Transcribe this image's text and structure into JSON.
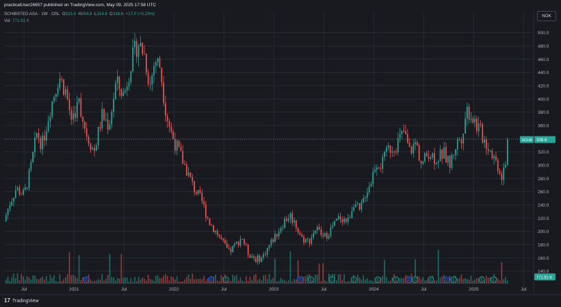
{
  "header": {
    "published_by": "practicalUser26657 published on TradingView.com, May 09, 2025 17:58 UTC"
  },
  "legend": {
    "symbol": "SCHIBSTED ASA · 1W · OSL",
    "o_label": "O",
    "o": "323.0",
    "h_label": "H",
    "h": "354.8",
    "l_label": "L",
    "l": "314.8",
    "c_label": "C",
    "c": "338.6",
    "change": "+17.0 (+5.29%)",
    "vol_label": "Vol",
    "vol": "771.91 K"
  },
  "currency": "NOK",
  "footer": {
    "logo": "17",
    "brand": "TradingView"
  },
  "colors": {
    "up": "#26a69a",
    "down": "#ef5350",
    "grid": "#262a33",
    "background": "#181a1f",
    "axis_text": "#b2b5be",
    "price_label": "#26a69a"
  },
  "chart_data": {
    "type": "candlestick",
    "interval": "1W",
    "currency": "NOK",
    "x_range": [
      "2020-04",
      "2025-07"
    ],
    "x_tick_labels": [
      "Jul",
      "2021",
      "Jul",
      "2022",
      "Jul",
      "2023",
      "Jul",
      "2024",
      "Jul",
      "2025",
      "Jul"
    ],
    "x_tick_dates": [
      2020.5,
      2021.0,
      2021.5,
      2022.0,
      2022.5,
      2023.0,
      2023.5,
      2024.0,
      2024.5,
      2025.0,
      2025.5
    ],
    "y_ticks": [
      140,
      160,
      180,
      200,
      220,
      240,
      260,
      280,
      300,
      320,
      340,
      360,
      380,
      400,
      420,
      440,
      460,
      480,
      500
    ],
    "ylim": [
      120,
      510
    ],
    "y_tick_labels": [
      "140.0",
      "160.0",
      "180.0",
      "200.0",
      "220.0",
      "240.0",
      "260.0",
      "280.0",
      "300.0",
      "320.0",
      "340.0",
      "360.0",
      "380.0",
      "400.0",
      "420.0",
      "440.0",
      "460.0",
      "480.0",
      "500.0"
    ],
    "last_price": 338.6,
    "last_price_label": "338.6",
    "last_price_tag": "SCHA",
    "last_volume_label": "771.91 K",
    "price_path": [
      {
        "t": 2020.3,
        "p": 215
      },
      {
        "t": 2020.35,
        "p": 240
      },
      {
        "t": 2020.42,
        "p": 265
      },
      {
        "t": 2020.5,
        "p": 255
      },
      {
        "t": 2020.56,
        "p": 290
      },
      {
        "t": 2020.63,
        "p": 350
      },
      {
        "t": 2020.68,
        "p": 330
      },
      {
        "t": 2020.76,
        "p": 385
      },
      {
        "t": 2020.85,
        "p": 435
      },
      {
        "t": 2020.92,
        "p": 410
      },
      {
        "t": 2020.97,
        "p": 370
      },
      {
        "t": 2021.05,
        "p": 395
      },
      {
        "t": 2021.12,
        "p": 350
      },
      {
        "t": 2021.2,
        "p": 320
      },
      {
        "t": 2021.28,
        "p": 375
      },
      {
        "t": 2021.35,
        "p": 360
      },
      {
        "t": 2021.42,
        "p": 425
      },
      {
        "t": 2021.5,
        "p": 405
      },
      {
        "t": 2021.57,
        "p": 455
      },
      {
        "t": 2021.64,
        "p": 485
      },
      {
        "t": 2021.7,
        "p": 470
      },
      {
        "t": 2021.76,
        "p": 420
      },
      {
        "t": 2021.81,
        "p": 460
      },
      {
        "t": 2021.86,
        "p": 450
      },
      {
        "t": 2021.92,
        "p": 380
      },
      {
        "t": 2021.98,
        "p": 345
      },
      {
        "t": 2022.05,
        "p": 320
      },
      {
        "t": 2022.12,
        "p": 295
      },
      {
        "t": 2022.2,
        "p": 265
      },
      {
        "t": 2022.28,
        "p": 245
      },
      {
        "t": 2022.35,
        "p": 215
      },
      {
        "t": 2022.42,
        "p": 200
      },
      {
        "t": 2022.5,
        "p": 180
      },
      {
        "t": 2022.55,
        "p": 168
      },
      {
        "t": 2022.62,
        "p": 180
      },
      {
        "t": 2022.68,
        "p": 192
      },
      {
        "t": 2022.74,
        "p": 168
      },
      {
        "t": 2022.82,
        "p": 158
      },
      {
        "t": 2022.88,
        "p": 160
      },
      {
        "t": 2022.95,
        "p": 178
      },
      {
        "t": 2023.02,
        "p": 195
      },
      {
        "t": 2023.1,
        "p": 215
      },
      {
        "t": 2023.16,
        "p": 225
      },
      {
        "t": 2023.22,
        "p": 210
      },
      {
        "t": 2023.28,
        "p": 190
      },
      {
        "t": 2023.35,
        "p": 185
      },
      {
        "t": 2023.42,
        "p": 205
      },
      {
        "t": 2023.5,
        "p": 190
      },
      {
        "t": 2023.58,
        "p": 205
      },
      {
        "t": 2023.66,
        "p": 222
      },
      {
        "t": 2023.74,
        "p": 215
      },
      {
        "t": 2023.8,
        "p": 245
      },
      {
        "t": 2023.86,
        "p": 228
      },
      {
        "t": 2023.92,
        "p": 260
      },
      {
        "t": 2023.97,
        "p": 275
      },
      {
        "t": 2024.02,
        "p": 305
      },
      {
        "t": 2024.08,
        "p": 300
      },
      {
        "t": 2024.15,
        "p": 325
      },
      {
        "t": 2024.22,
        "p": 330
      },
      {
        "t": 2024.3,
        "p": 350
      },
      {
        "t": 2024.36,
        "p": 320
      },
      {
        "t": 2024.42,
        "p": 335
      },
      {
        "t": 2024.48,
        "p": 300
      },
      {
        "t": 2024.55,
        "p": 320
      },
      {
        "t": 2024.62,
        "p": 310
      },
      {
        "t": 2024.7,
        "p": 318
      },
      {
        "t": 2024.76,
        "p": 300
      },
      {
        "t": 2024.82,
        "p": 330
      },
      {
        "t": 2024.88,
        "p": 345
      },
      {
        "t": 2024.93,
        "p": 385
      },
      {
        "t": 2024.98,
        "p": 375
      },
      {
        "t": 2025.05,
        "p": 355
      },
      {
        "t": 2025.12,
        "p": 335
      },
      {
        "t": 2025.18,
        "p": 320
      },
      {
        "t": 2025.24,
        "p": 300
      },
      {
        "t": 2025.28,
        "p": 285
      },
      {
        "t": 2025.32,
        "p": 300
      },
      {
        "t": 2025.35,
        "p": 338.6
      }
    ],
    "event_markers": [
      {
        "t": 2021.12,
        "label": "D"
      },
      {
        "t": 2022.37,
        "label": "D"
      },
      {
        "t": 2022.52,
        "label": "E"
      },
      {
        "t": 2023.26,
        "label": "D"
      },
      {
        "t": 2023.37,
        "label": "E"
      },
      {
        "t": 2023.58,
        "label": "E"
      },
      {
        "t": 2023.8,
        "label": "E"
      },
      {
        "t": 2024.04,
        "label": "E"
      },
      {
        "t": 2024.22,
        "label": "E"
      },
      {
        "t": 2024.35,
        "label": "D"
      },
      {
        "t": 2024.41,
        "label": "E"
      },
      {
        "t": 2024.57,
        "label": "E"
      },
      {
        "t": 2024.73,
        "label": "D"
      },
      {
        "t": 2024.8,
        "label": "E"
      },
      {
        "t": 2025.08,
        "label": "E"
      },
      {
        "t": 2025.2,
        "label": "E"
      }
    ]
  }
}
